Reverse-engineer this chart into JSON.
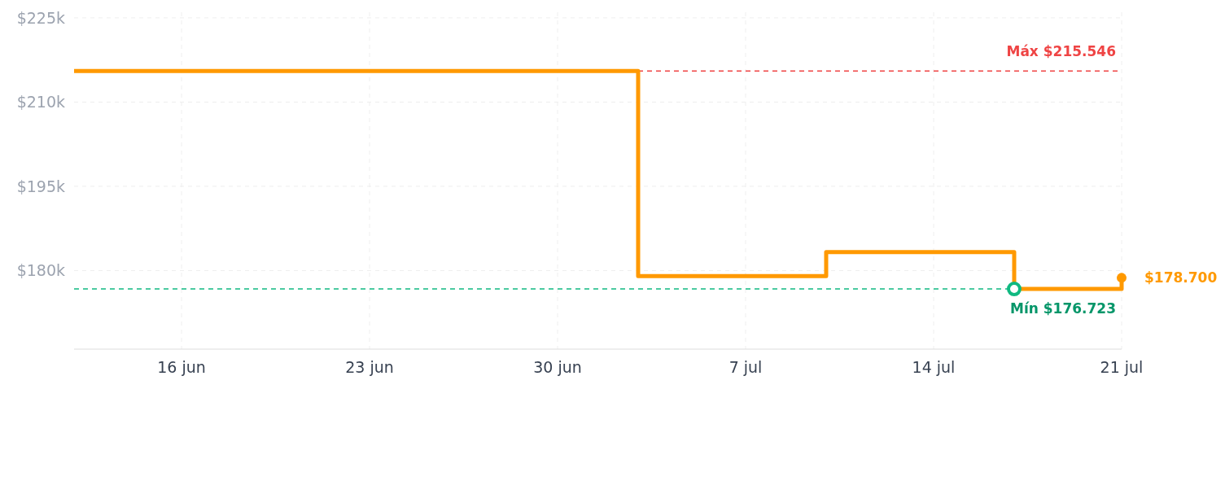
{
  "chart_data": {
    "type": "step",
    "x": [
      "--06-12",
      "--07-03",
      "--07-10",
      "--07-17",
      "--07-21"
    ],
    "series": [
      {
        "color": "#ff9900",
        "values": [
          215.546,
          179.0,
          183.3,
          176.723,
          178.7
        ],
        "value_labels": [
          null,
          null,
          null,
          null,
          "$178.700"
        ]
      }
    ],
    "xlim": [
      "--06-12",
      "--07-21"
    ],
    "xticks": [
      {
        "value": "--06-16",
        "label": "16 jun"
      },
      {
        "value": "--06-23",
        "label": "23 jun"
      },
      {
        "value": "--06-30",
        "label": "30 jun"
      },
      {
        "value": "--07-07",
        "label": "7 jul"
      },
      {
        "value": "--07-14",
        "label": "14 jul"
      },
      {
        "value": "--07-21",
        "label": "21 jul"
      }
    ],
    "ylim": [
      166,
      226
    ],
    "yticks": [
      {
        "value": 180,
        "label": "$180k"
      },
      {
        "value": 195,
        "label": "$195k"
      },
      {
        "value": 210,
        "label": "$210k"
      },
      {
        "value": 225,
        "label": "$225k"
      }
    ],
    "ref_lines": [
      {
        "axis": "y",
        "value": 215.546,
        "label": "Máx $215.546",
        "color": "#ef4444",
        "line_style": "dashed"
      },
      {
        "axis": "y",
        "value": 176.723,
        "label": "Mín $176.723",
        "color": "#10b981",
        "line_style": "dashed"
      }
    ],
    "grid": true,
    "marker": "none",
    "line_style": "solid"
  }
}
